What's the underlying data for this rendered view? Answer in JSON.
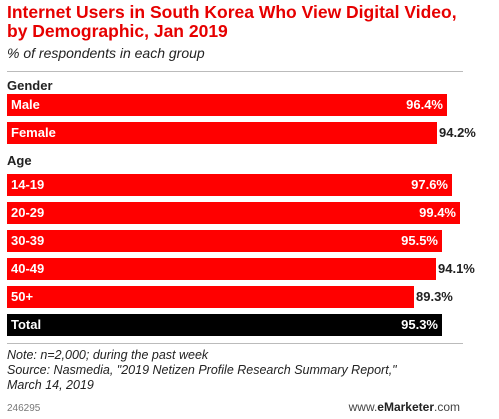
{
  "chart_data": {
    "type": "bar",
    "title": "Internet Users in South Korea Who View Digital Video, by Demographic, Jan 2019",
    "subtitle": "% of respondents in each group",
    "groups": [
      "Gender",
      "Age"
    ],
    "bars": [
      {
        "label": "Male",
        "value": 96.4,
        "display": "96.4%",
        "group": "Gender",
        "color": "#ff0000"
      },
      {
        "label": "Female",
        "value": 94.2,
        "display": "94.2%",
        "group": "Gender",
        "color": "#ff0000"
      },
      {
        "label": "14-19",
        "value": 97.6,
        "display": "97.6%",
        "group": "Age",
        "color": "#ff0000"
      },
      {
        "label": "20-29",
        "value": 99.4,
        "display": "99.4%",
        "group": "Age",
        "color": "#ff0000"
      },
      {
        "label": "30-39",
        "value": 95.5,
        "display": "95.5%",
        "group": "Age",
        "color": "#ff0000"
      },
      {
        "label": "40-49",
        "value": 94.1,
        "display": "94.1%",
        "group": "Age",
        "color": "#ff0000"
      },
      {
        "label": "50+",
        "value": 89.3,
        "display": "89.3%",
        "group": "Age",
        "color": "#ff0000"
      },
      {
        "label": "Total",
        "value": 95.3,
        "display": "95.3%",
        "group": "",
        "color": "#000000"
      }
    ],
    "xlim": [
      0,
      100
    ]
  },
  "notes": {
    "note": "Note: n=2,000; during the past week",
    "source_line1": "Source: Nasmedia, \"2019 Netizen Profile Research Summary Report,\"",
    "source_line2": "March 14, 2019"
  },
  "footer": {
    "id": "246295",
    "brand_prefix": "www.",
    "brand_name": "eMarketer",
    "brand_suffix": ".com"
  }
}
